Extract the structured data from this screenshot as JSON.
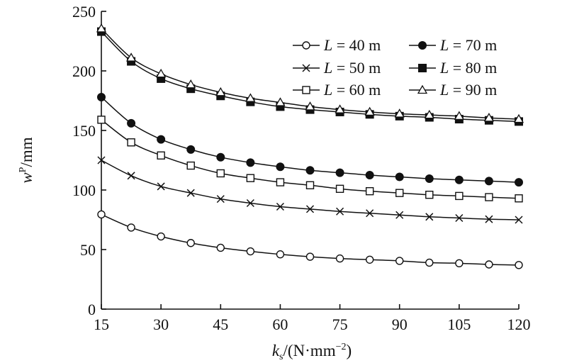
{
  "chart_data": {
    "type": "line",
    "xlabel": {
      "main": "k",
      "sub": "s",
      "unit_open": "/(N·mm",
      "sup": "−2",
      "unit_close": ")"
    },
    "ylabel": {
      "main": "w",
      "sup": "P",
      "unit": "/mm"
    },
    "xlim": [
      15,
      120
    ],
    "ylim": [
      0,
      250
    ],
    "xticks": [
      15,
      30,
      45,
      60,
      75,
      90,
      105,
      120
    ],
    "yticks": [
      0,
      50,
      100,
      150,
      200,
      250
    ],
    "grid": false,
    "legend_position": "top-right",
    "x": [
      15,
      22.5,
      30,
      37.5,
      45,
      52.5,
      60,
      67.5,
      75,
      82.5,
      90,
      97.5,
      105,
      112.5,
      120
    ],
    "series": [
      {
        "name": "L = 40 m",
        "var": "L",
        "rest": " = 40 m",
        "marker": "circle-open",
        "values": [
          79.5,
          68.5,
          61,
          55.5,
          51.5,
          48.5,
          46,
          44,
          42.5,
          41.5,
          40.5,
          39,
          38.5,
          37.5,
          37
        ]
      },
      {
        "name": "L = 50 m",
        "var": "L",
        "rest": " = 50 m",
        "marker": "cross",
        "values": [
          125,
          112,
          103,
          97.5,
          92.5,
          89,
          86,
          84,
          82,
          80.5,
          79,
          77.5,
          76.5,
          75.5,
          75
        ]
      },
      {
        "name": "L = 60 m",
        "var": "L",
        "rest": " = 60 m",
        "marker": "square-open",
        "values": [
          159,
          140,
          129,
          120.5,
          114,
          110,
          106.5,
          104,
          101,
          99,
          97.5,
          96,
          95,
          94,
          93
        ]
      },
      {
        "name": "L = 70 m",
        "var": "L",
        "rest": " = 70 m",
        "marker": "circle-filled",
        "values": [
          178,
          156,
          142.5,
          134,
          127.5,
          123,
          119.5,
          116.5,
          114.5,
          112.5,
          111,
          109.5,
          108.5,
          107.5,
          106.5
        ]
      },
      {
        "name": "L = 80 m",
        "var": "L",
        "rest": " = 80 m",
        "marker": "square-filled",
        "values": [
          233,
          208,
          193.5,
          185,
          179,
          174,
          170,
          167.5,
          165.5,
          163.5,
          162,
          161,
          159.5,
          158.5,
          157.5
        ]
      },
      {
        "name": "L = 90 m",
        "var": "L",
        "rest": " = 90 m",
        "marker": "triangle-open",
        "values": [
          235.5,
          211,
          197.5,
          188.5,
          182,
          177,
          173.5,
          170,
          167.5,
          165.5,
          164,
          163,
          162,
          160.5,
          159.5
        ]
      }
    ]
  }
}
